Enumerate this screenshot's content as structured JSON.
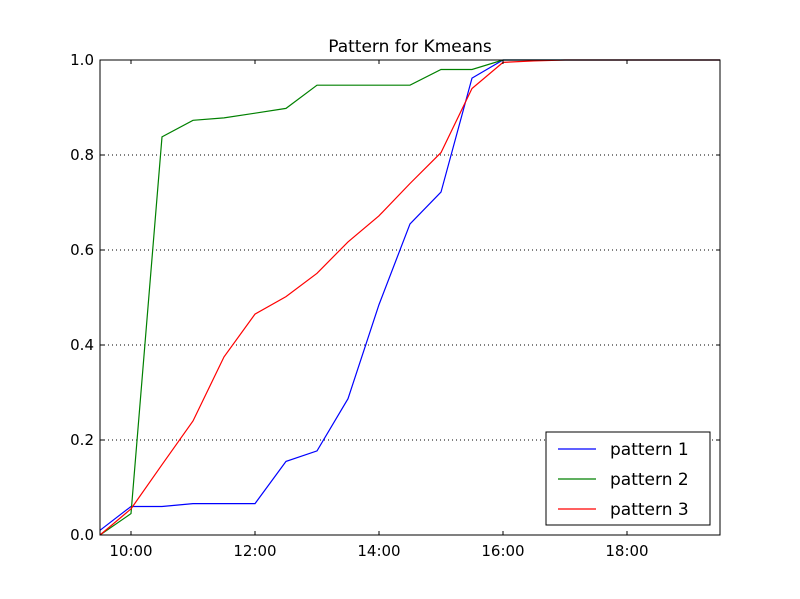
{
  "chart_data": {
    "type": "line",
    "title": "Pattern for Kmeans",
    "xlabel": "",
    "ylabel": "",
    "x_axis": {
      "kind": "time",
      "range": [
        "09:30",
        "19:30"
      ],
      "ticks": [
        "10:00",
        "12:00",
        "14:00",
        "16:00",
        "18:00"
      ]
    },
    "y_axis": {
      "range": [
        0,
        1
      ],
      "ticks": [
        "0.0",
        "0.2",
        "0.4",
        "0.6",
        "0.8",
        "1.0"
      ]
    },
    "grid": "horizontal dotted",
    "legend": {
      "placement": "lower-right"
    },
    "x": [
      "09:30",
      "10:00",
      "10:30",
      "11:00",
      "11:30",
      "12:00",
      "12:30",
      "13:00",
      "13:30",
      "14:00",
      "14:30",
      "15:00",
      "15:30",
      "16:00",
      "16:30",
      "17:00",
      "17:30",
      "18:00",
      "18:30",
      "19:00",
      "19:30"
    ],
    "series": [
      {
        "name": "pattern 1",
        "color": "#0000ff",
        "values": [
          0.01,
          0.06,
          0.06,
          0.066,
          0.066,
          0.066,
          0.155,
          0.177,
          0.287,
          0.485,
          0.655,
          0.722,
          0.962,
          1.0,
          1.0,
          1.0,
          1.0,
          1.0,
          1.0,
          1.0,
          1.0
        ]
      },
      {
        "name": "pattern 2",
        "color": "#008000",
        "values": [
          0.0,
          0.045,
          0.838,
          0.873,
          0.878,
          0.888,
          0.898,
          0.947,
          0.947,
          0.947,
          0.947,
          0.98,
          0.98,
          1.0,
          1.0,
          1.0,
          1.0,
          1.0,
          1.0,
          1.0,
          1.0
        ]
      },
      {
        "name": "pattern 3",
        "color": "#ff0000",
        "values": [
          0.0,
          0.055,
          0.148,
          0.24,
          0.375,
          0.465,
          0.502,
          0.551,
          0.617,
          0.672,
          0.74,
          0.805,
          0.94,
          0.995,
          0.998,
          1.0,
          1.0,
          1.0,
          1.0,
          1.0,
          1.0
        ]
      }
    ]
  }
}
